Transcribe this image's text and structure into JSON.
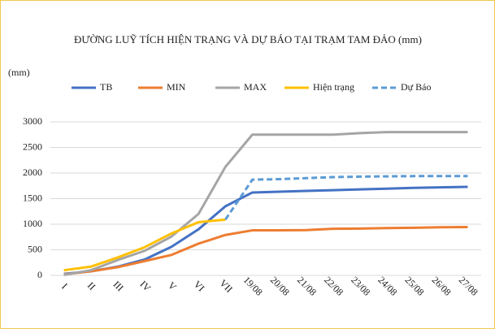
{
  "chart_data": {
    "type": "line",
    "title": "ĐƯỜNG LUỸ TÍCH HIỆN TRẠNG VÀ DỰ BÁO TẠI TRẠM TAM ĐẢO (mm)",
    "y_label": "(mm)",
    "categories": [
      "I",
      "II",
      "III",
      "IV",
      "V",
      "VI",
      "VII",
      "19/08",
      "20/08",
      "21/08",
      "22/08",
      "23/08",
      "24/08",
      "25/08",
      "26/08",
      "27/08"
    ],
    "series": [
      {
        "name": "TB",
        "color": "#4472c4",
        "values": [
          30,
          80,
          170,
          310,
          560,
          900,
          1350,
          1620,
          1635,
          1650,
          1665,
          1680,
          1695,
          1710,
          1720,
          1730
        ]
      },
      {
        "name": "MIN",
        "color": "#ed7d31",
        "values": [
          20,
          80,
          160,
          280,
          400,
          620,
          790,
          880,
          880,
          885,
          910,
          915,
          925,
          930,
          940,
          945
        ]
      },
      {
        "name": "MAX",
        "color": "#a5a5a5",
        "values": [
          10,
          100,
          300,
          480,
          760,
          1200,
          2120,
          2750,
          2750,
          2750,
          2750,
          2780,
          2800,
          2800,
          2800,
          2800
        ]
      },
      {
        "name": "Hiện trạng",
        "color": "#ffc000",
        "values": [
          100,
          170,
          350,
          550,
          820,
          1040,
          1090,
          null,
          null,
          null,
          null,
          null,
          null,
          null,
          null,
          null
        ]
      },
      {
        "name": "Dự Báo",
        "color": "#5b9bd5",
        "dashed": true,
        "values": [
          null,
          null,
          null,
          null,
          null,
          null,
          1090,
          1870,
          1880,
          1900,
          1920,
          1930,
          1935,
          1940,
          1940,
          1940
        ]
      }
    ],
    "ylim": [
      0,
      3000
    ],
    "yticks": [
      0,
      500,
      1000,
      1500,
      2000,
      2500,
      3000
    ],
    "grid": true,
    "legend": "top"
  }
}
